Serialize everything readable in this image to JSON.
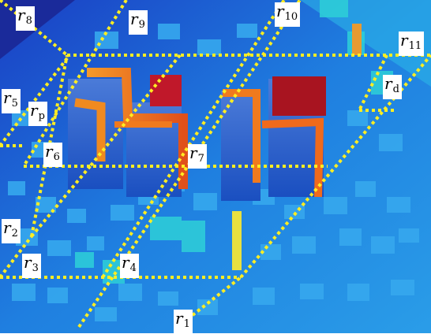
{
  "figure": {
    "description_free": true,
    "colors": {
      "ground": "#1d6fd6",
      "low": "#2a9ae8",
      "mid": "#2fc7e0",
      "high": "#f07a1e",
      "top": "#b41820",
      "road_lines": "#ffee22",
      "label_bg": "#ffffff"
    },
    "labels": [
      {
        "base": "r",
        "sub": "1"
      },
      {
        "base": "r",
        "sub": "2"
      },
      {
        "base": "r",
        "sub": "3"
      },
      {
        "base": "r",
        "sub": "4"
      },
      {
        "base": "r",
        "sub": "5"
      },
      {
        "base": "r",
        "sub": "6"
      },
      {
        "base": "r",
        "sub": "7"
      },
      {
        "base": "r",
        "sub": "8"
      },
      {
        "base": "r",
        "sub": "9"
      },
      {
        "base": "r",
        "sub": "10"
      },
      {
        "base": "r",
        "sub": "11"
      },
      {
        "base": "r",
        "sub": "p"
      },
      {
        "base": "r",
        "sub": "d"
      }
    ]
  }
}
